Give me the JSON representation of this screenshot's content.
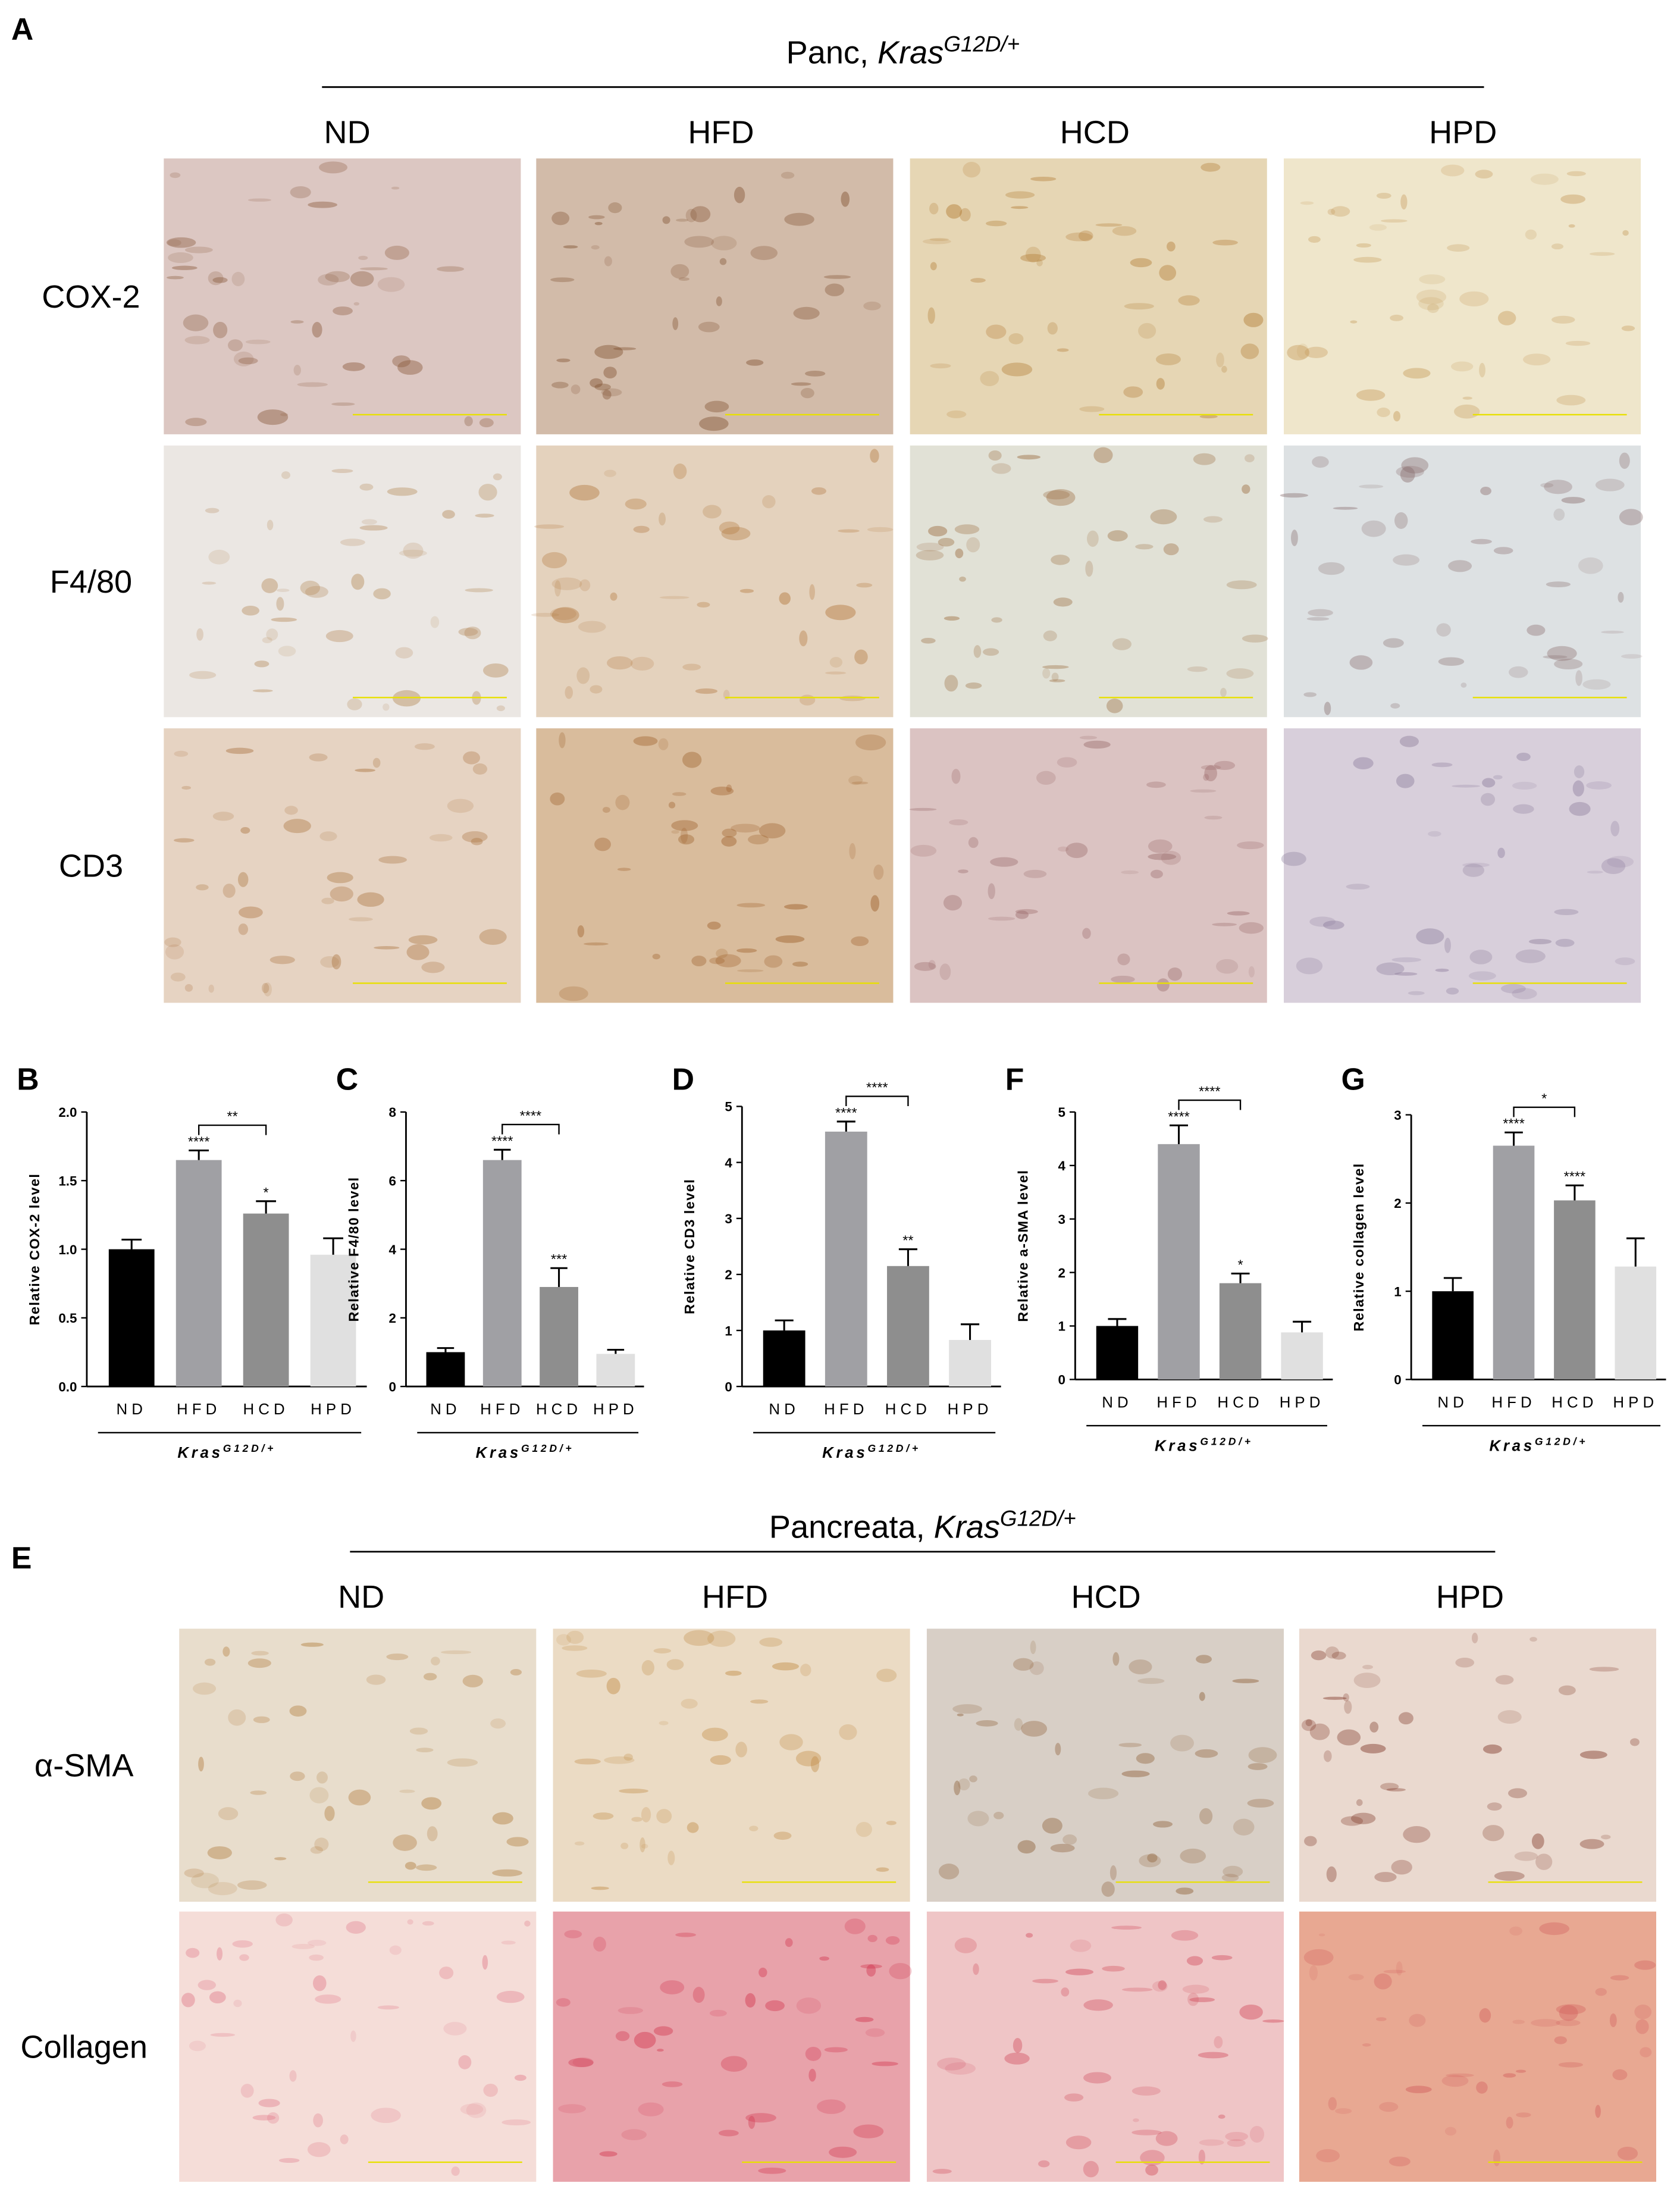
{
  "panels": {
    "A": {
      "label": "A",
      "header": {
        "prefix": "Panc, ",
        "gene": "Kras",
        "superscript": "G12D/+"
      },
      "columns": [
        "ND",
        "HFD",
        "HCD",
        "HPD"
      ],
      "rows": [
        "COX-2",
        "F4/80",
        "CD3"
      ]
    },
    "E": {
      "label": "E",
      "header": {
        "prefix": "Pancreata, ",
        "gene": "Kras",
        "superscript": "G12D/+"
      },
      "columns": [
        "ND",
        "HFD",
        "HCD",
        "HPD"
      ],
      "rows": [
        "α-SMA",
        "Collagen"
      ]
    }
  },
  "chart_data": [
    {
      "type": "bar",
      "panel": "B",
      "ylabel": "Relative COX-2 level",
      "categories": [
        "ND",
        "HFD",
        "HCD",
        "HPD"
      ],
      "values": [
        1.0,
        1.65,
        1.26,
        0.96
      ],
      "errors": [
        0.07,
        0.07,
        0.09,
        0.12
      ],
      "colors": [
        "#000000",
        "#a0a0a4",
        "#8e8e8e",
        "#e0e0e0"
      ],
      "star_labels": [
        null,
        "****",
        "*",
        null
      ],
      "bracket_label": "**",
      "ylim": [
        0,
        2
      ],
      "yticks": [
        {
          "value": 0,
          "label": "0.0"
        },
        {
          "value": 0.5,
          "label": "0.5"
        },
        {
          "value": 1,
          "label": "1.0"
        },
        {
          "value": 1.5,
          "label": "1.5"
        },
        {
          "value": 2,
          "label": "2.0"
        }
      ],
      "group_label": {
        "gene": "Kras",
        "superscript": "G12D/+"
      }
    },
    {
      "type": "bar",
      "panel": "C",
      "ylabel": "Relative F4/80 level",
      "categories": [
        "ND",
        "HFD",
        "HCD",
        "HPD"
      ],
      "values": [
        1.0,
        6.6,
        2.9,
        0.95
      ],
      "errors": [
        0.12,
        0.3,
        0.55,
        0.12
      ],
      "colors": [
        "#000000",
        "#a0a0a4",
        "#8e8e8e",
        "#e0e0e0"
      ],
      "star_labels": [
        null,
        "****",
        "***",
        null
      ],
      "bracket_label": "****",
      "ylim": [
        0,
        8
      ],
      "yticks": [
        0,
        2,
        4,
        6,
        8
      ],
      "group_label": {
        "gene": "Kras",
        "superscript": "G12D/+"
      }
    },
    {
      "type": "bar",
      "panel": "D",
      "ylabel": "Relative CD3 level",
      "categories": [
        "ND",
        "HFD",
        "HCD",
        "HPD"
      ],
      "values": [
        1.0,
        4.55,
        2.15,
        0.83
      ],
      "errors": [
        0.18,
        0.18,
        0.3,
        0.28
      ],
      "colors": [
        "#000000",
        "#a0a0a4",
        "#8e8e8e",
        "#e0e0e0"
      ],
      "star_labels": [
        null,
        "****",
        "**",
        null
      ],
      "bracket_label": "****",
      "ylim": [
        0,
        5
      ],
      "yticks": [
        0,
        1,
        2,
        3,
        4,
        5
      ],
      "group_label": {
        "gene": "Kras",
        "superscript": "G12D/+"
      }
    },
    {
      "type": "bar",
      "panel": "F",
      "ylabel": "Relative a-SMA level",
      "categories": [
        "ND",
        "HFD",
        "HCD",
        "HPD"
      ],
      "values": [
        1.0,
        4.4,
        1.8,
        0.88
      ],
      "errors": [
        0.13,
        0.35,
        0.18,
        0.2
      ],
      "colors": [
        "#000000",
        "#a0a0a4",
        "#8e8e8e",
        "#e0e0e0"
      ],
      "star_labels": [
        null,
        "****",
        "*",
        null
      ],
      "bracket_label": "****",
      "ylim": [
        0,
        5
      ],
      "yticks": [
        0,
        1,
        2,
        3,
        4,
        5
      ],
      "group_label": {
        "gene": "Kras",
        "superscript": "G12D/+"
      }
    },
    {
      "type": "bar",
      "panel": "G",
      "ylabel": "Relative collagen level",
      "categories": [
        "ND",
        "HFD",
        "HCD",
        "HPD"
      ],
      "values": [
        1.0,
        2.65,
        2.03,
        1.28
      ],
      "errors": [
        0.15,
        0.15,
        0.17,
        0.32
      ],
      "colors": [
        "#000000",
        "#a0a0a4",
        "#8e8e8e",
        "#e0e0e0"
      ],
      "star_labels": [
        null,
        "****",
        "****",
        null
      ],
      "bracket_label": "*",
      "ylim": [
        0,
        3
      ],
      "yticks": [
        0,
        1,
        2,
        3
      ],
      "group_label": {
        "gene": "Kras",
        "superscript": "G12D/+"
      }
    }
  ]
}
